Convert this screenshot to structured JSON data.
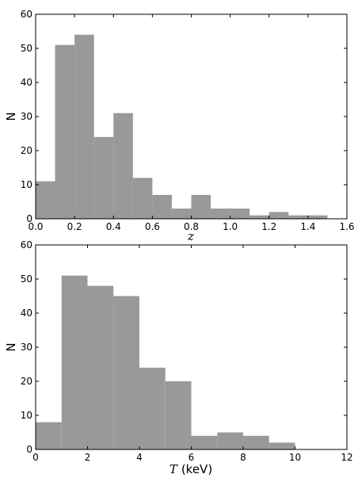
{
  "chart_data": [
    {
      "type": "bar",
      "x_bin_edges": [
        0.0,
        0.1,
        0.2,
        0.3,
        0.4,
        0.5,
        0.6,
        0.7,
        0.8,
        0.9,
        1.0,
        1.1,
        1.2,
        1.3,
        1.4,
        1.5
      ],
      "values": [
        11,
        51,
        54,
        24,
        31,
        12,
        7,
        3,
        7,
        3,
        3,
        1,
        2,
        1,
        1
      ],
      "xlabel": "z",
      "xlabel_italic": true,
      "ylabel": "N",
      "xlim": [
        0.0,
        1.6
      ],
      "ylim": [
        0,
        60
      ],
      "xticks": [
        "0.0",
        "0.2",
        "0.4",
        "0.6",
        "0.8",
        "1.0",
        "1.2",
        "1.4",
        "1.6"
      ],
      "yticks": [
        "0",
        "10",
        "20",
        "30",
        "40",
        "50",
        "60"
      ],
      "bar_color": "#999999",
      "grid": false
    },
    {
      "type": "bar",
      "x_bin_edges": [
        0,
        1,
        2,
        3,
        4,
        5,
        6,
        7,
        8,
        9,
        10,
        11,
        12
      ],
      "values": [
        8,
        51,
        48,
        45,
        24,
        20,
        4,
        5,
        4,
        2,
        0,
        0
      ],
      "xlabel": "(keV)",
      "xlabel_italic_prefix": "T",
      "ylabel": "N",
      "xlim": [
        0,
        12
      ],
      "ylim": [
        0,
        60
      ],
      "xticks": [
        "0",
        "2",
        "4",
        "6",
        "8",
        "10",
        "12"
      ],
      "yticks": [
        "0",
        "10",
        "20",
        "30",
        "40",
        "50",
        "60"
      ],
      "bar_color": "#999999",
      "grid": false
    }
  ]
}
